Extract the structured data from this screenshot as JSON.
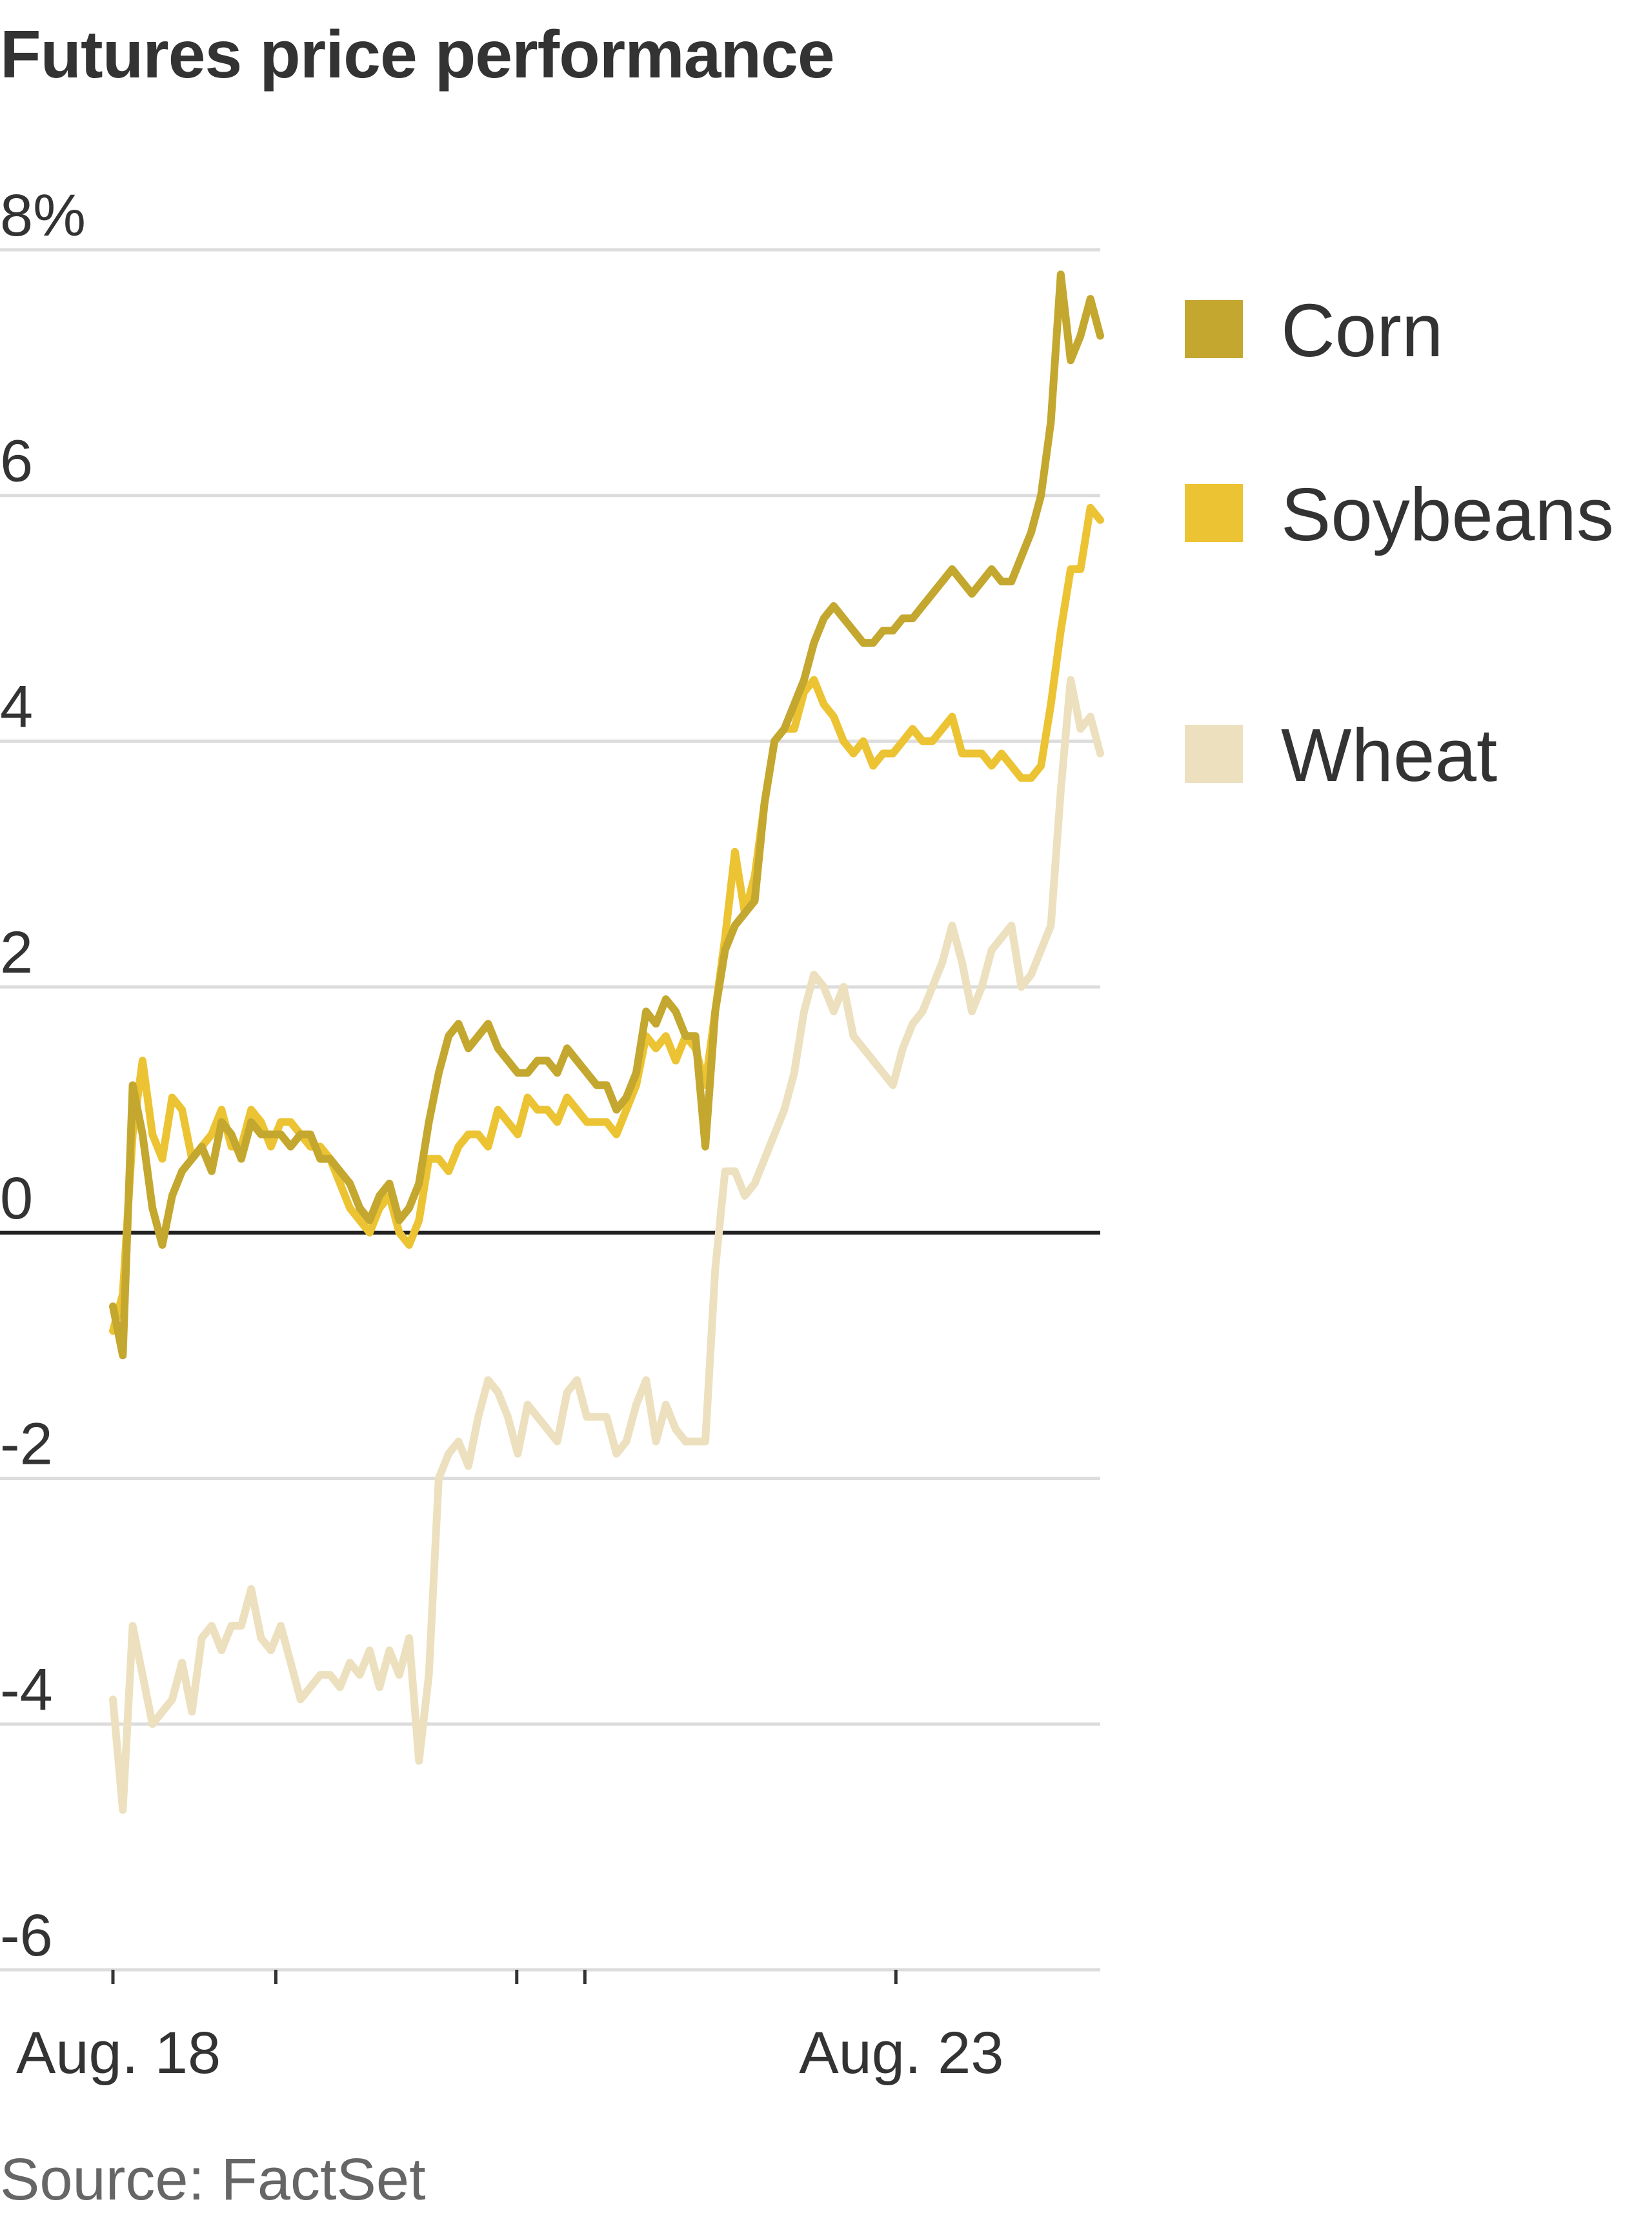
{
  "title": "Futures price performance",
  "source": "Source: FactSet",
  "chart_data": {
    "type": "line",
    "title": "Futures price performance",
    "ylabel": "",
    "xlabel": "",
    "ylim": [
      -6,
      8
    ],
    "yticks": [
      8,
      6,
      4,
      2,
      0,
      -2,
      -4,
      -6
    ],
    "ytick_labels": [
      "8%",
      "6",
      "4",
      "2",
      "0",
      "-2",
      "-4",
      "-6"
    ],
    "xlim": [
      0,
      100
    ],
    "xticks": [
      0,
      16.5,
      40.9,
      47.8,
      79.3
    ],
    "xtick_labels": [
      {
        "x": 0,
        "label": "Aug. 18"
      },
      {
        "x": 79.3,
        "label": "Aug. 23"
      }
    ],
    "grid": true,
    "zero_line": true,
    "legend_position": "right",
    "series": [
      {
        "name": "Soybeans",
        "color": "#ecc332",
        "x": [
          0,
          1,
          2,
          3,
          4,
          5,
          6,
          7,
          8,
          9,
          10,
          11,
          12,
          13,
          14,
          15,
          16,
          17,
          18,
          19,
          20,
          21,
          22,
          23,
          24,
          25,
          26,
          27,
          28,
          29,
          30,
          31,
          32,
          33,
          34,
          35,
          36,
          37,
          38,
          39,
          40,
          41,
          42,
          43,
          44,
          45,
          46,
          47,
          48,
          49,
          50,
          51,
          52,
          53,
          54,
          55,
          56,
          57,
          58,
          59,
          60,
          61,
          62,
          63,
          64,
          65,
          66,
          67,
          68,
          69,
          70,
          71,
          72,
          73,
          74,
          75,
          76,
          77,
          78,
          79,
          80,
          81,
          82,
          83,
          84,
          85,
          86,
          87,
          88,
          89,
          90,
          91,
          92,
          93,
          94,
          95,
          96,
          97,
          98,
          99,
          100
        ],
        "values": [
          -0.8,
          -0.5,
          0.8,
          1.4,
          0.8,
          0.6,
          1.1,
          1.0,
          0.6,
          0.7,
          0.8,
          1.0,
          0.7,
          0.7,
          1.0,
          0.9,
          0.7,
          0.9,
          0.9,
          0.8,
          0.7,
          0.7,
          0.6,
          0.4,
          0.2,
          0.1,
          0.0,
          0.2,
          0.3,
          0.0,
          -0.1,
          0.1,
          0.6,
          0.6,
          0.5,
          0.7,
          0.8,
          0.8,
          0.7,
          1.0,
          0.9,
          0.8,
          1.1,
          1.0,
          1.0,
          0.9,
          1.1,
          1.0,
          0.9,
          0.9,
          0.9,
          0.8,
          1.0,
          1.2,
          1.6,
          1.5,
          1.6,
          1.4,
          1.6,
          1.5,
          1.2,
          1.8,
          2.4,
          3.1,
          2.6,
          2.9,
          3.5,
          4.0,
          4.1,
          4.1,
          4.4,
          4.5,
          4.3,
          4.2,
          4.0,
          3.9,
          4.0,
          3.8,
          3.9,
          3.9,
          4.0,
          4.1,
          4.0,
          4.0,
          4.1,
          4.2,
          3.9,
          3.9,
          3.9,
          3.8,
          3.9,
          3.8,
          3.7,
          3.7,
          3.8,
          4.3,
          4.9,
          5.4,
          5.4,
          5.9,
          5.8
        ]
      },
      {
        "name": "Corn",
        "color": "#c4a72e",
        "x": [
          0,
          1,
          2,
          3,
          4,
          5,
          6,
          7,
          8,
          9,
          10,
          11,
          12,
          13,
          14,
          15,
          16,
          17,
          18,
          19,
          20,
          21,
          22,
          23,
          24,
          25,
          26,
          27,
          28,
          29,
          30,
          31,
          32,
          33,
          34,
          35,
          36,
          37,
          38,
          39,
          40,
          41,
          42,
          43,
          44,
          45,
          46,
          47,
          48,
          49,
          50,
          51,
          52,
          53,
          54,
          55,
          56,
          57,
          58,
          59,
          60,
          61,
          62,
          63,
          64,
          65,
          66,
          67,
          68,
          69,
          70,
          71,
          72,
          73,
          74,
          75,
          76,
          77,
          78,
          79,
          80,
          81,
          82,
          83,
          84,
          85,
          86,
          87,
          88,
          89,
          90,
          91,
          92,
          93,
          94,
          95,
          96,
          97,
          98,
          99,
          100
        ],
        "values": [
          -0.6,
          -1.0,
          1.2,
          0.8,
          0.2,
          -0.1,
          0.3,
          0.5,
          0.6,
          0.7,
          0.5,
          0.9,
          0.8,
          0.6,
          0.9,
          0.8,
          0.8,
          0.8,
          0.7,
          0.8,
          0.8,
          0.6,
          0.6,
          0.5,
          0.4,
          0.2,
          0.1,
          0.3,
          0.4,
          0.1,
          0.2,
          0.4,
          0.9,
          1.3,
          1.6,
          1.7,
          1.5,
          1.6,
          1.7,
          1.5,
          1.4,
          1.3,
          1.3,
          1.4,
          1.4,
          1.3,
          1.5,
          1.4,
          1.3,
          1.2,
          1.2,
          1.0,
          1.1,
          1.3,
          1.8,
          1.7,
          1.9,
          1.8,
          1.6,
          1.6,
          0.7,
          1.8,
          2.3,
          2.5,
          2.6,
          2.7,
          3.5,
          4.0,
          4.1,
          4.3,
          4.5,
          4.8,
          5.0,
          5.1,
          5.0,
          4.9,
          4.8,
          4.8,
          4.9,
          4.9,
          5.0,
          5.0,
          5.1,
          5.2,
          5.3,
          5.4,
          5.3,
          5.2,
          5.3,
          5.4,
          5.3,
          5.3,
          5.5,
          5.7,
          6.0,
          6.6,
          7.8,
          7.1,
          7.3,
          7.6,
          7.3
        ]
      },
      {
        "name": "Wheat",
        "color": "#ede0bf",
        "x": [
          0,
          1,
          2,
          3,
          4,
          5,
          6,
          7,
          8,
          9,
          10,
          11,
          12,
          13,
          14,
          15,
          16,
          17,
          18,
          19,
          20,
          21,
          22,
          23,
          24,
          25,
          26,
          27,
          28,
          29,
          30,
          31,
          32,
          33,
          34,
          35,
          36,
          37,
          38,
          39,
          40,
          41,
          42,
          43,
          44,
          45,
          46,
          47,
          48,
          49,
          50,
          51,
          52,
          53,
          54,
          55,
          56,
          57,
          58,
          59,
          60,
          61,
          62,
          63,
          64,
          65,
          66,
          67,
          68,
          69,
          70,
          71,
          72,
          73,
          74,
          75,
          76,
          77,
          78,
          79,
          80,
          81,
          82,
          83,
          84,
          85,
          86,
          87,
          88,
          89,
          90,
          91,
          92,
          93,
          94,
          95,
          96,
          97,
          98,
          99,
          100
        ],
        "values": [
          -3.8,
          -4.7,
          -3.2,
          -3.6,
          -4.0,
          -3.9,
          -3.8,
          -3.5,
          -3.9,
          -3.3,
          -3.2,
          -3.4,
          -3.2,
          -3.2,
          -2.9,
          -3.3,
          -3.4,
          -3.2,
          -3.5,
          -3.8,
          -3.7,
          -3.6,
          -3.6,
          -3.7,
          -3.5,
          -3.6,
          -3.4,
          -3.7,
          -3.4,
          -3.6,
          -3.3,
          -4.3,
          -3.6,
          -2.0,
          -1.8,
          -1.7,
          -1.9,
          -1.5,
          -1.2,
          -1.3,
          -1.5,
          -1.8,
          -1.4,
          -1.5,
          -1.6,
          -1.7,
          -1.3,
          -1.2,
          -1.5,
          -1.5,
          -1.5,
          -1.8,
          -1.7,
          -1.4,
          -1.2,
          -1.7,
          -1.4,
          -1.6,
          -1.7,
          -1.7,
          -1.7,
          -0.3,
          0.5,
          0.5,
          0.3,
          0.4,
          0.6,
          0.8,
          1.0,
          1.3,
          1.8,
          2.1,
          2.0,
          1.8,
          2.0,
          1.6,
          1.5,
          1.4,
          1.3,
          1.2,
          1.5,
          1.7,
          1.8,
          2.0,
          2.2,
          2.5,
          2.2,
          1.8,
          2.0,
          2.3,
          2.4,
          2.5,
          2.0,
          2.1,
          2.3,
          2.5,
          3.6,
          4.5,
          4.1,
          4.2,
          3.9
        ]
      }
    ],
    "legend": [
      {
        "name": "Corn",
        "color": "#c4a72e"
      },
      {
        "name": "Soybeans",
        "color": "#ecc332"
      },
      {
        "name": "Wheat",
        "color": "#ede0bf"
      }
    ]
  }
}
